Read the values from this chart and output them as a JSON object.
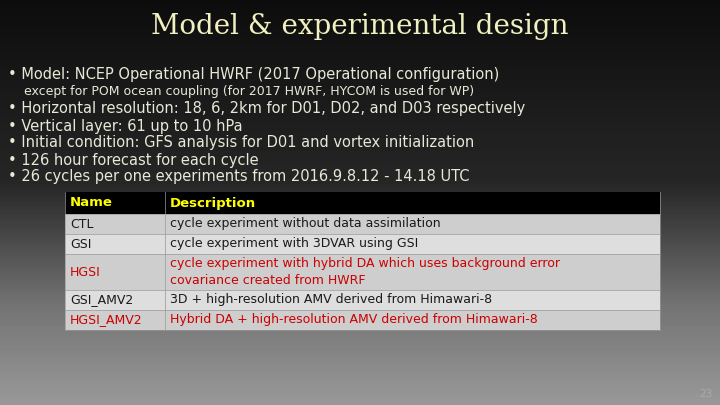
{
  "title": "Model & experimental design",
  "title_color": "#f0f0c0",
  "title_fontsize": 20,
  "bullets": [
    {
      "text": "• Model: NCEP Operational HWRF (2017 Operational configuration)",
      "indent": 8,
      "fontsize": 10.5,
      "color": "#e8e8d8"
    },
    {
      "text": "    except for POM ocean coupling (for 2017 HWRF, HYCOM is used for WP)",
      "indent": 8,
      "fontsize": 9.0,
      "color": "#e8e8d8"
    },
    {
      "text": "• Horizontal resolution: 18, 6, 2km for D01, D02, and D03 respectively",
      "indent": 8,
      "fontsize": 10.5,
      "color": "#e8e8d8"
    },
    {
      "text": "• Vertical layer: 61 up to 10 hPa",
      "indent": 8,
      "fontsize": 10.5,
      "color": "#e8e8d8"
    },
    {
      "text": "• Initial condition: GFS analysis for D01 and vortex initialization",
      "indent": 8,
      "fontsize": 10.5,
      "color": "#e8e8d8"
    },
    {
      "text": "• 126 hour forecast for each cycle",
      "indent": 8,
      "fontsize": 10.5,
      "color": "#e8e8d8"
    },
    {
      "text": "• 26 cycles per one experiments from 2016.9.8.12 - 14.18 UTC",
      "indent": 8,
      "fontsize": 10.5,
      "color": "#e8e8d8"
    }
  ],
  "table_header": [
    "Name",
    "Description"
  ],
  "table_header_bg": "#000000",
  "table_header_color": "#ffff00",
  "table_rows": [
    [
      "CTL",
      "cycle experiment without data assimilation",
      "#1a1a1a",
      "#cecece"
    ],
    [
      "GSI",
      "cycle experiment with 3DVAR using GSI",
      "#1a1a1a",
      "#dedede"
    ],
    [
      "HGSI",
      "cycle experiment with hybrid DA which uses background error\ncovariance created from HWRF",
      "#cc0000",
      "#cecece"
    ],
    [
      "GSI_AMV2",
      "3D + high-resolution AMV derived from Himawari-8",
      "#1a1a1a",
      "#dedede"
    ],
    [
      "HGSI_AMV2",
      "Hybrid DA + high-resolution AMV derived from Himawari-8",
      "#cc0000",
      "#cecece"
    ]
  ],
  "page_number": "23"
}
